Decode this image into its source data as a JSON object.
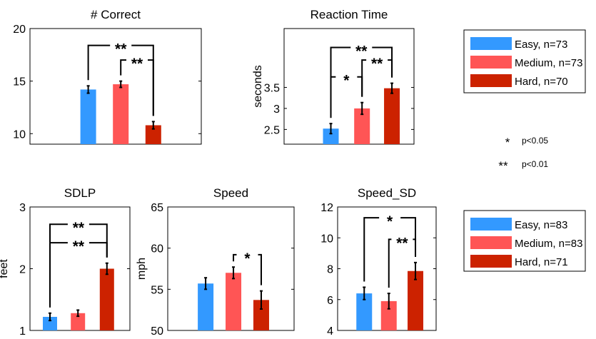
{
  "colors": {
    "easy": "#3399ff",
    "medium": "#ff5555",
    "hard": "#cc2200"
  },
  "significance_key": [
    {
      "marker": "*",
      "label": "p<0.05"
    },
    {
      "marker": "**",
      "label": "p<0.01"
    }
  ],
  "legends": [
    {
      "entries": [
        {
          "label": "Easy, n=73",
          "color_key": "easy"
        },
        {
          "label": "Medium, n=73",
          "color_key": "medium"
        },
        {
          "label": "Hard, n=70",
          "color_key": "hard"
        }
      ]
    },
    {
      "entries": [
        {
          "label": "Easy, n=83",
          "color_key": "easy"
        },
        {
          "label": "Medium, n=83",
          "color_key": "medium"
        },
        {
          "label": "Hard, n=71",
          "color_key": "hard"
        }
      ]
    }
  ],
  "chart_data": [
    {
      "type": "bar",
      "title": "# Correct",
      "ylabel": "",
      "categories": [
        "Easy",
        "Medium",
        "Hard"
      ],
      "values": [
        14.2,
        14.7,
        10.8
      ],
      "errors": [
        0.35,
        0.3,
        0.35
      ],
      "ylim": [
        9,
        20
      ],
      "yticks": [
        10,
        15,
        20
      ],
      "tick_labels": [
        "10",
        "15",
        "20"
      ],
      "brackets": [
        {
          "from": 0,
          "to": 2,
          "label": "**"
        },
        {
          "from": 1,
          "to": 2,
          "label": "**"
        }
      ]
    },
    {
      "type": "bar",
      "title": "Reaction Time",
      "ylabel": "seconds",
      "categories": [
        "Easy",
        "Medium",
        "Hard"
      ],
      "values": [
        2.52,
        3.0,
        3.48
      ],
      "errors": [
        0.12,
        0.14,
        0.12
      ],
      "ylim": [
        2.15,
        4.9
      ],
      "yticks": [
        2.5,
        3,
        3.5
      ],
      "tick_labels": [
        "2.5",
        "3",
        "3.5"
      ],
      "brackets": [
        {
          "from": 0,
          "to": 2,
          "label": "**"
        },
        {
          "from": 1,
          "to": 2,
          "label": "**"
        },
        {
          "from": 0,
          "to": 1,
          "label": "*"
        }
      ]
    },
    {
      "type": "bar",
      "title": "SDLP",
      "ylabel": "feet",
      "categories": [
        "Easy",
        "Medium",
        "Hard"
      ],
      "values": [
        1.22,
        1.28,
        2.0
      ],
      "errors": [
        0.06,
        0.05,
        0.09
      ],
      "ylim": [
        1,
        3
      ],
      "yticks": [
        1,
        2,
        3
      ],
      "tick_labels": [
        "1",
        "2",
        "3"
      ],
      "brackets": [
        {
          "from": 0,
          "to": 2,
          "label": "**"
        },
        {
          "from": 0,
          "to": 2,
          "label": "**"
        }
      ]
    },
    {
      "type": "bar",
      "title": "Speed",
      "ylabel": "mph",
      "categories": [
        "Easy",
        "Medium",
        "Hard"
      ],
      "values": [
        55.7,
        57.0,
        53.7
      ],
      "errors": [
        0.7,
        0.7,
        1.1
      ],
      "ylim": [
        50,
        65
      ],
      "yticks": [
        50,
        55,
        60,
        65
      ],
      "tick_labels": [
        "50",
        "55",
        "60",
        "65"
      ],
      "brackets": [
        {
          "from": 1,
          "to": 2,
          "label": "*"
        }
      ]
    },
    {
      "type": "bar",
      "title": "Speed_SD",
      "ylabel": "",
      "categories": [
        "Easy",
        "Medium",
        "Hard"
      ],
      "values": [
        6.4,
        5.9,
        7.85
      ],
      "errors": [
        0.4,
        0.5,
        0.55
      ],
      "ylim": [
        4,
        12
      ],
      "yticks": [
        4,
        6,
        8,
        10,
        12
      ],
      "tick_labels": [
        "4",
        "6",
        "8",
        "10",
        "12"
      ],
      "brackets": [
        {
          "from": 0,
          "to": 2,
          "label": "*"
        },
        {
          "from": 1,
          "to": 2,
          "label": "**"
        }
      ]
    }
  ]
}
